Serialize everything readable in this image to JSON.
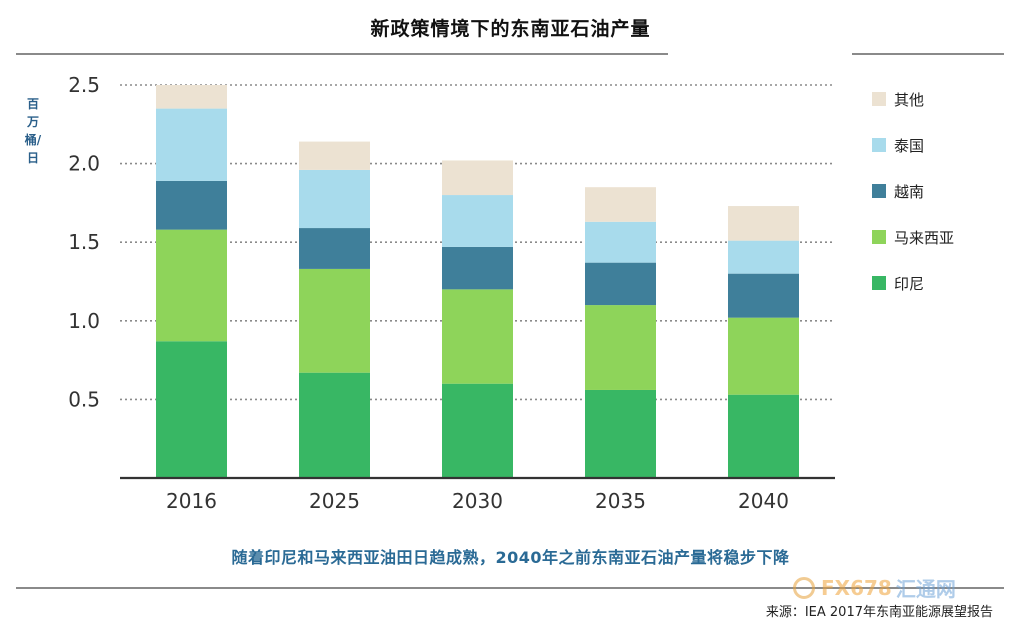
{
  "title": "新政策情境下的东南亚石油产量",
  "subtitle": "随着印尼和马来西亚油田日趋成熟，2040年之前东南亚石油产量将稳步下降",
  "source": "来源：IEA 2017年东南亚能源展望报告",
  "watermark": {
    "text_a": "FX678",
    "text_b": "汇通网"
  },
  "chart_data": {
    "type": "bar",
    "stacked": true,
    "title": "新政策情境下的东南亚石油产量",
    "xlabel": "",
    "ylabel": "百万桶/日",
    "ylim": [
      0,
      2.5
    ],
    "yticks": [
      "0.5",
      "1.0",
      "1.5",
      "2.0",
      "2.5"
    ],
    "ytick_values": [
      0.5,
      1.0,
      1.5,
      2.0,
      2.5
    ],
    "categories": [
      "2016",
      "2025",
      "2030",
      "2035",
      "2040"
    ],
    "grid": "dotted horizontal",
    "legend_position": "right",
    "series": [
      {
        "name": "印尼",
        "color": "#38b764",
        "values": [
          0.87,
          0.67,
          0.6,
          0.56,
          0.53
        ]
      },
      {
        "name": "马来西亚",
        "color": "#8ed45a",
        "values": [
          0.71,
          0.66,
          0.6,
          0.54,
          0.49
        ]
      },
      {
        "name": "越南",
        "color": "#3f7f9a",
        "values": [
          0.31,
          0.26,
          0.27,
          0.27,
          0.28
        ]
      },
      {
        "name": "泰国",
        "color": "#a8dbec",
        "values": [
          0.46,
          0.37,
          0.33,
          0.26,
          0.21
        ]
      },
      {
        "name": "其他",
        "color": "#ece2d2",
        "values": [
          0.15,
          0.18,
          0.22,
          0.22,
          0.22
        ]
      }
    ],
    "legend_order": [
      "其他",
      "泰国",
      "越南",
      "马来西亚",
      "印尼"
    ]
  }
}
